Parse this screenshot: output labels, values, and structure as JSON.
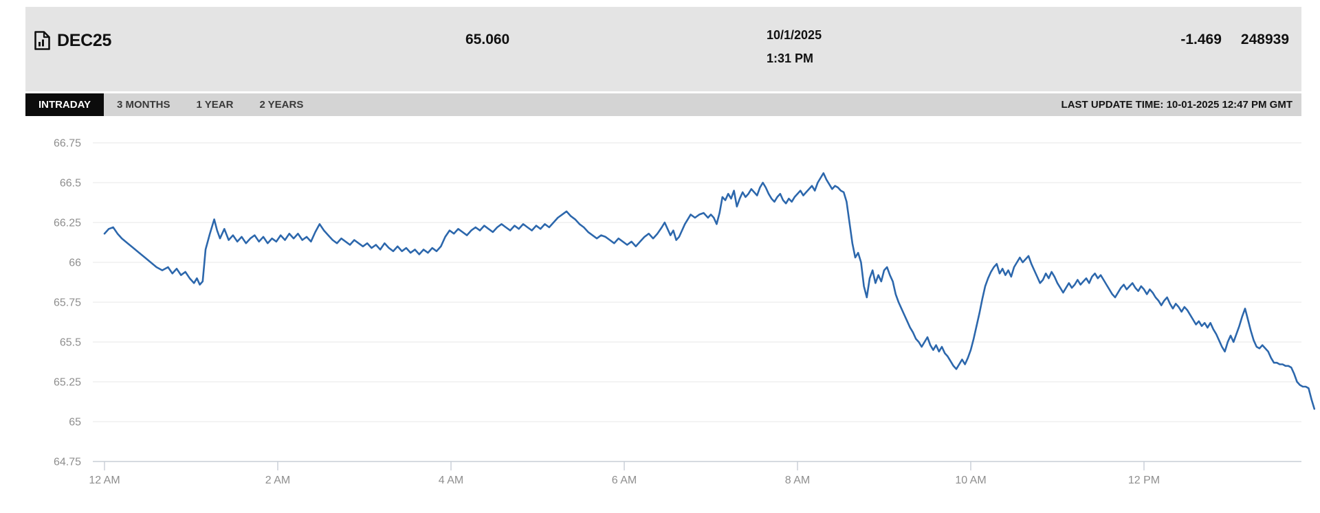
{
  "header": {
    "symbol": "DEC25",
    "last_price": "65.060",
    "date": "10/1/2025",
    "time": "1:31 PM",
    "change": "-1.469",
    "volume": "248939"
  },
  "toolbar": {
    "tabs": [
      {
        "label": "INTRADAY",
        "active": true
      },
      {
        "label": "3 MONTHS",
        "active": false
      },
      {
        "label": "1 YEAR",
        "active": false
      },
      {
        "label": "2 YEARS",
        "active": false
      }
    ],
    "last_update": "LAST UPDATE TIME: 10-01-2025 12:47 PM GMT"
  },
  "colors": {
    "header_bg": "#e4e4e4",
    "tabbar_bg": "#d4d4d4",
    "active_tab_bg": "#0c0c0c",
    "line": "#2c67ac",
    "grid": "#ececec",
    "axis": "#c7cdd5",
    "axis_text": "#8e8e8e"
  },
  "chart_data": {
    "type": "line",
    "title": "DEC25 intraday price",
    "x_unit": "minutes since 12:00 AM",
    "xlabel": "",
    "ylabel": "",
    "ylim": [
      64.75,
      66.75
    ],
    "grid": true,
    "legend": "none",
    "line_color": "#2c67ac",
    "y_ticks": [
      {
        "v": 66.75,
        "label": "66.75"
      },
      {
        "v": 66.5,
        "label": "66.5"
      },
      {
        "v": 66.25,
        "label": "66.25"
      },
      {
        "v": 66.0,
        "label": "66"
      },
      {
        "v": 65.75,
        "label": "65.75"
      },
      {
        "v": 65.5,
        "label": "65.5"
      },
      {
        "v": 65.25,
        "label": "65.25"
      },
      {
        "v": 65.0,
        "label": "65"
      },
      {
        "v": 64.75,
        "label": "64.75"
      }
    ],
    "x_ticks": [
      {
        "t": 0,
        "label": "12 AM"
      },
      {
        "t": 120,
        "label": "2 AM"
      },
      {
        "t": 240,
        "label": "4 AM"
      },
      {
        "t": 360,
        "label": "6 AM"
      },
      {
        "t": 480,
        "label": "8 AM"
      },
      {
        "t": 600,
        "label": "10 AM"
      },
      {
        "t": 720,
        "label": "12 PM"
      }
    ],
    "points": [
      [
        0,
        66.18
      ],
      [
        3,
        66.21
      ],
      [
        6,
        66.22
      ],
      [
        9,
        66.18
      ],
      [
        12,
        66.15
      ],
      [
        16,
        66.12
      ],
      [
        20,
        66.09
      ],
      [
        24,
        66.06
      ],
      [
        28,
        66.03
      ],
      [
        32,
        66.0
      ],
      [
        36,
        65.97
      ],
      [
        40,
        65.95
      ],
      [
        44,
        65.97
      ],
      [
        47,
        65.93
      ],
      [
        50,
        65.96
      ],
      [
        53,
        65.92
      ],
      [
        56,
        65.94
      ],
      [
        59,
        65.9
      ],
      [
        62,
        65.87
      ],
      [
        64,
        65.9
      ],
      [
        66,
        65.86
      ],
      [
        68,
        65.88
      ],
      [
        70,
        66.08
      ],
      [
        73,
        66.18
      ],
      [
        76,
        66.27
      ],
      [
        78,
        66.2
      ],
      [
        80,
        66.15
      ],
      [
        83,
        66.21
      ],
      [
        86,
        66.14
      ],
      [
        89,
        66.17
      ],
      [
        92,
        66.13
      ],
      [
        95,
        66.16
      ],
      [
        98,
        66.12
      ],
      [
        101,
        66.15
      ],
      [
        104,
        66.17
      ],
      [
        107,
        66.13
      ],
      [
        110,
        66.16
      ],
      [
        113,
        66.12
      ],
      [
        116,
        66.15
      ],
      [
        119,
        66.13
      ],
      [
        122,
        66.17
      ],
      [
        125,
        66.14
      ],
      [
        128,
        66.18
      ],
      [
        131,
        66.15
      ],
      [
        134,
        66.18
      ],
      [
        137,
        66.14
      ],
      [
        140,
        66.16
      ],
      [
        143,
        66.13
      ],
      [
        146,
        66.19
      ],
      [
        149,
        66.24
      ],
      [
        152,
        66.2
      ],
      [
        155,
        66.17
      ],
      [
        158,
        66.14
      ],
      [
        161,
        66.12
      ],
      [
        164,
        66.15
      ],
      [
        167,
        66.13
      ],
      [
        170,
        66.11
      ],
      [
        173,
        66.14
      ],
      [
        176,
        66.12
      ],
      [
        179,
        66.1
      ],
      [
        182,
        66.12
      ],
      [
        185,
        66.09
      ],
      [
        188,
        66.11
      ],
      [
        191,
        66.08
      ],
      [
        194,
        66.12
      ],
      [
        197,
        66.09
      ],
      [
        200,
        66.07
      ],
      [
        203,
        66.1
      ],
      [
        206,
        66.07
      ],
      [
        209,
        66.09
      ],
      [
        212,
        66.06
      ],
      [
        215,
        66.08
      ],
      [
        218,
        66.05
      ],
      [
        221,
        66.08
      ],
      [
        224,
        66.06
      ],
      [
        227,
        66.09
      ],
      [
        230,
        66.07
      ],
      [
        233,
        66.1
      ],
      [
        236,
        66.16
      ],
      [
        239,
        66.2
      ],
      [
        242,
        66.18
      ],
      [
        245,
        66.21
      ],
      [
        248,
        66.19
      ],
      [
        251,
        66.17
      ],
      [
        254,
        66.2
      ],
      [
        257,
        66.22
      ],
      [
        260,
        66.2
      ],
      [
        263,
        66.23
      ],
      [
        266,
        66.21
      ],
      [
        269,
        66.19
      ],
      [
        272,
        66.22
      ],
      [
        275,
        66.24
      ],
      [
        278,
        66.22
      ],
      [
        281,
        66.2
      ],
      [
        284,
        66.23
      ],
      [
        287,
        66.21
      ],
      [
        290,
        66.24
      ],
      [
        293,
        66.22
      ],
      [
        296,
        66.2
      ],
      [
        299,
        66.23
      ],
      [
        302,
        66.21
      ],
      [
        305,
        66.24
      ],
      [
        308,
        66.22
      ],
      [
        311,
        66.25
      ],
      [
        314,
        66.28
      ],
      [
        317,
        66.3
      ],
      [
        320,
        66.32
      ],
      [
        323,
        66.29
      ],
      [
        326,
        66.27
      ],
      [
        329,
        66.24
      ],
      [
        332,
        66.22
      ],
      [
        335,
        66.19
      ],
      [
        338,
        66.17
      ],
      [
        341,
        66.15
      ],
      [
        344,
        66.17
      ],
      [
        347,
        66.16
      ],
      [
        350,
        66.14
      ],
      [
        353,
        66.12
      ],
      [
        356,
        66.15
      ],
      [
        359,
        66.13
      ],
      [
        362,
        66.11
      ],
      [
        365,
        66.13
      ],
      [
        368,
        66.1
      ],
      [
        371,
        66.13
      ],
      [
        374,
        66.16
      ],
      [
        377,
        66.18
      ],
      [
        380,
        66.15
      ],
      [
        383,
        66.18
      ],
      [
        386,
        66.22
      ],
      [
        388,
        66.25
      ],
      [
        390,
        66.21
      ],
      [
        392,
        66.17
      ],
      [
        394,
        66.2
      ],
      [
        396,
        66.14
      ],
      [
        398,
        66.16
      ],
      [
        400,
        66.2
      ],
      [
        402,
        66.24
      ],
      [
        404,
        66.27
      ],
      [
        406,
        66.3
      ],
      [
        409,
        66.28
      ],
      [
        412,
        66.3
      ],
      [
        415,
        66.31
      ],
      [
        418,
        66.28
      ],
      [
        420,
        66.3
      ],
      [
        422,
        66.28
      ],
      [
        424,
        66.24
      ],
      [
        426,
        66.31
      ],
      [
        428,
        66.41
      ],
      [
        430,
        66.39
      ],
      [
        432,
        66.43
      ],
      [
        434,
        66.4
      ],
      [
        436,
        66.45
      ],
      [
        438,
        66.35
      ],
      [
        440,
        66.4
      ],
      [
        442,
        66.44
      ],
      [
        444,
        66.41
      ],
      [
        446,
        66.43
      ],
      [
        448,
        66.46
      ],
      [
        450,
        66.44
      ],
      [
        452,
        66.42
      ],
      [
        454,
        66.47
      ],
      [
        456,
        66.5
      ],
      [
        458,
        66.47
      ],
      [
        460,
        66.43
      ],
      [
        462,
        66.4
      ],
      [
        464,
        66.38
      ],
      [
        466,
        66.41
      ],
      [
        468,
        66.43
      ],
      [
        470,
        66.39
      ],
      [
        472,
        66.37
      ],
      [
        474,
        66.4
      ],
      [
        476,
        66.38
      ],
      [
        478,
        66.41
      ],
      [
        480,
        66.43
      ],
      [
        482,
        66.45
      ],
      [
        484,
        66.42
      ],
      [
        486,
        66.44
      ],
      [
        488,
        66.46
      ],
      [
        490,
        66.48
      ],
      [
        492,
        66.45
      ],
      [
        494,
        66.5
      ],
      [
        496,
        66.53
      ],
      [
        498,
        66.56
      ],
      [
        500,
        66.52
      ],
      [
        502,
        66.49
      ],
      [
        504,
        66.46
      ],
      [
        506,
        66.48
      ],
      [
        508,
        66.47
      ],
      [
        510,
        66.45
      ],
      [
        512,
        66.44
      ],
      [
        514,
        66.38
      ],
      [
        516,
        66.25
      ],
      [
        518,
        66.12
      ],
      [
        520,
        66.03
      ],
      [
        522,
        66.06
      ],
      [
        524,
        66.0
      ],
      [
        526,
        65.85
      ],
      [
        528,
        65.78
      ],
      [
        530,
        65.9
      ],
      [
        532,
        65.95
      ],
      [
        534,
        65.87
      ],
      [
        536,
        65.92
      ],
      [
        538,
        65.88
      ],
      [
        540,
        65.95
      ],
      [
        542,
        65.97
      ],
      [
        544,
        65.92
      ],
      [
        546,
        65.88
      ],
      [
        548,
        65.8
      ],
      [
        550,
        65.75
      ],
      [
        552,
        65.71
      ],
      [
        554,
        65.67
      ],
      [
        556,
        65.63
      ],
      [
        558,
        65.59
      ],
      [
        560,
        65.56
      ],
      [
        562,
        65.52
      ],
      [
        564,
        65.5
      ],
      [
        566,
        65.47
      ],
      [
        568,
        65.5
      ],
      [
        570,
        65.53
      ],
      [
        572,
        65.48
      ],
      [
        574,
        65.45
      ],
      [
        576,
        65.48
      ],
      [
        578,
        65.44
      ],
      [
        580,
        65.47
      ],
      [
        582,
        65.43
      ],
      [
        584,
        65.41
      ],
      [
        586,
        65.38
      ],
      [
        588,
        65.35
      ],
      [
        590,
        65.33
      ],
      [
        592,
        65.36
      ],
      [
        594,
        65.39
      ],
      [
        596,
        65.36
      ],
      [
        598,
        65.4
      ],
      [
        600,
        65.45
      ],
      [
        602,
        65.52
      ],
      [
        604,
        65.6
      ],
      [
        606,
        65.68
      ],
      [
        608,
        65.77
      ],
      [
        610,
        65.85
      ],
      [
        612,
        65.9
      ],
      [
        614,
        65.94
      ],
      [
        616,
        65.97
      ],
      [
        618,
        65.99
      ],
      [
        620,
        65.93
      ],
      [
        622,
        65.96
      ],
      [
        624,
        65.92
      ],
      [
        626,
        65.95
      ],
      [
        628,
        65.91
      ],
      [
        630,
        65.97
      ],
      [
        632,
        66.0
      ],
      [
        634,
        66.03
      ],
      [
        636,
        66.0
      ],
      [
        638,
        66.02
      ],
      [
        640,
        66.04
      ],
      [
        642,
        65.99
      ],
      [
        644,
        65.95
      ],
      [
        646,
        65.91
      ],
      [
        648,
        65.87
      ],
      [
        650,
        65.89
      ],
      [
        652,
        65.93
      ],
      [
        654,
        65.9
      ],
      [
        656,
        65.94
      ],
      [
        658,
        65.91
      ],
      [
        660,
        65.87
      ],
      [
        662,
        65.84
      ],
      [
        664,
        65.81
      ],
      [
        666,
        65.84
      ],
      [
        668,
        65.87
      ],
      [
        670,
        65.84
      ],
      [
        672,
        65.86
      ],
      [
        674,
        65.89
      ],
      [
        676,
        65.86
      ],
      [
        678,
        65.88
      ],
      [
        680,
        65.9
      ],
      [
        682,
        65.87
      ],
      [
        684,
        65.91
      ],
      [
        686,
        65.93
      ],
      [
        688,
        65.9
      ],
      [
        690,
        65.92
      ],
      [
        692,
        65.89
      ],
      [
        694,
        65.86
      ],
      [
        696,
        65.83
      ],
      [
        698,
        65.8
      ],
      [
        700,
        65.78
      ],
      [
        702,
        65.81
      ],
      [
        704,
        65.84
      ],
      [
        706,
        65.86
      ],
      [
        708,
        65.83
      ],
      [
        710,
        65.85
      ],
      [
        712,
        65.87
      ],
      [
        714,
        65.84
      ],
      [
        716,
        65.82
      ],
      [
        718,
        65.85
      ],
      [
        720,
        65.83
      ],
      [
        722,
        65.8
      ],
      [
        724,
        65.83
      ],
      [
        726,
        65.81
      ],
      [
        728,
        65.78
      ],
      [
        730,
        65.76
      ],
      [
        732,
        65.73
      ],
      [
        734,
        65.76
      ],
      [
        736,
        65.78
      ],
      [
        738,
        65.74
      ],
      [
        740,
        65.71
      ],
      [
        742,
        65.74
      ],
      [
        744,
        65.72
      ],
      [
        746,
        65.69
      ],
      [
        748,
        65.72
      ],
      [
        750,
        65.7
      ],
      [
        752,
        65.67
      ],
      [
        754,
        65.64
      ],
      [
        756,
        65.61
      ],
      [
        758,
        65.63
      ],
      [
        760,
        65.6
      ],
      [
        762,
        65.62
      ],
      [
        764,
        65.59
      ],
      [
        766,
        65.62
      ],
      [
        768,
        65.58
      ],
      [
        770,
        65.55
      ],
      [
        772,
        65.51
      ],
      [
        774,
        65.47
      ],
      [
        776,
        65.44
      ],
      [
        778,
        65.5
      ],
      [
        780,
        65.54
      ],
      [
        782,
        65.5
      ],
      [
        784,
        65.55
      ],
      [
        786,
        65.6
      ],
      [
        788,
        65.66
      ],
      [
        790,
        65.71
      ],
      [
        792,
        65.64
      ],
      [
        794,
        65.57
      ],
      [
        796,
        65.51
      ],
      [
        798,
        65.47
      ],
      [
        800,
        65.46
      ],
      [
        802,
        65.48
      ],
      [
        804,
        65.46
      ],
      [
        806,
        65.44
      ],
      [
        808,
        65.4
      ],
      [
        810,
        65.37
      ],
      [
        812,
        65.37
      ],
      [
        814,
        65.36
      ],
      [
        816,
        65.36
      ],
      [
        818,
        65.35
      ],
      [
        820,
        65.35
      ],
      [
        822,
        65.34
      ],
      [
        824,
        65.3
      ],
      [
        826,
        65.25
      ],
      [
        828,
        65.23
      ],
      [
        830,
        65.22
      ],
      [
        832,
        65.22
      ],
      [
        834,
        65.21
      ],
      [
        836,
        65.14
      ],
      [
        838,
        65.08
      ]
    ]
  }
}
